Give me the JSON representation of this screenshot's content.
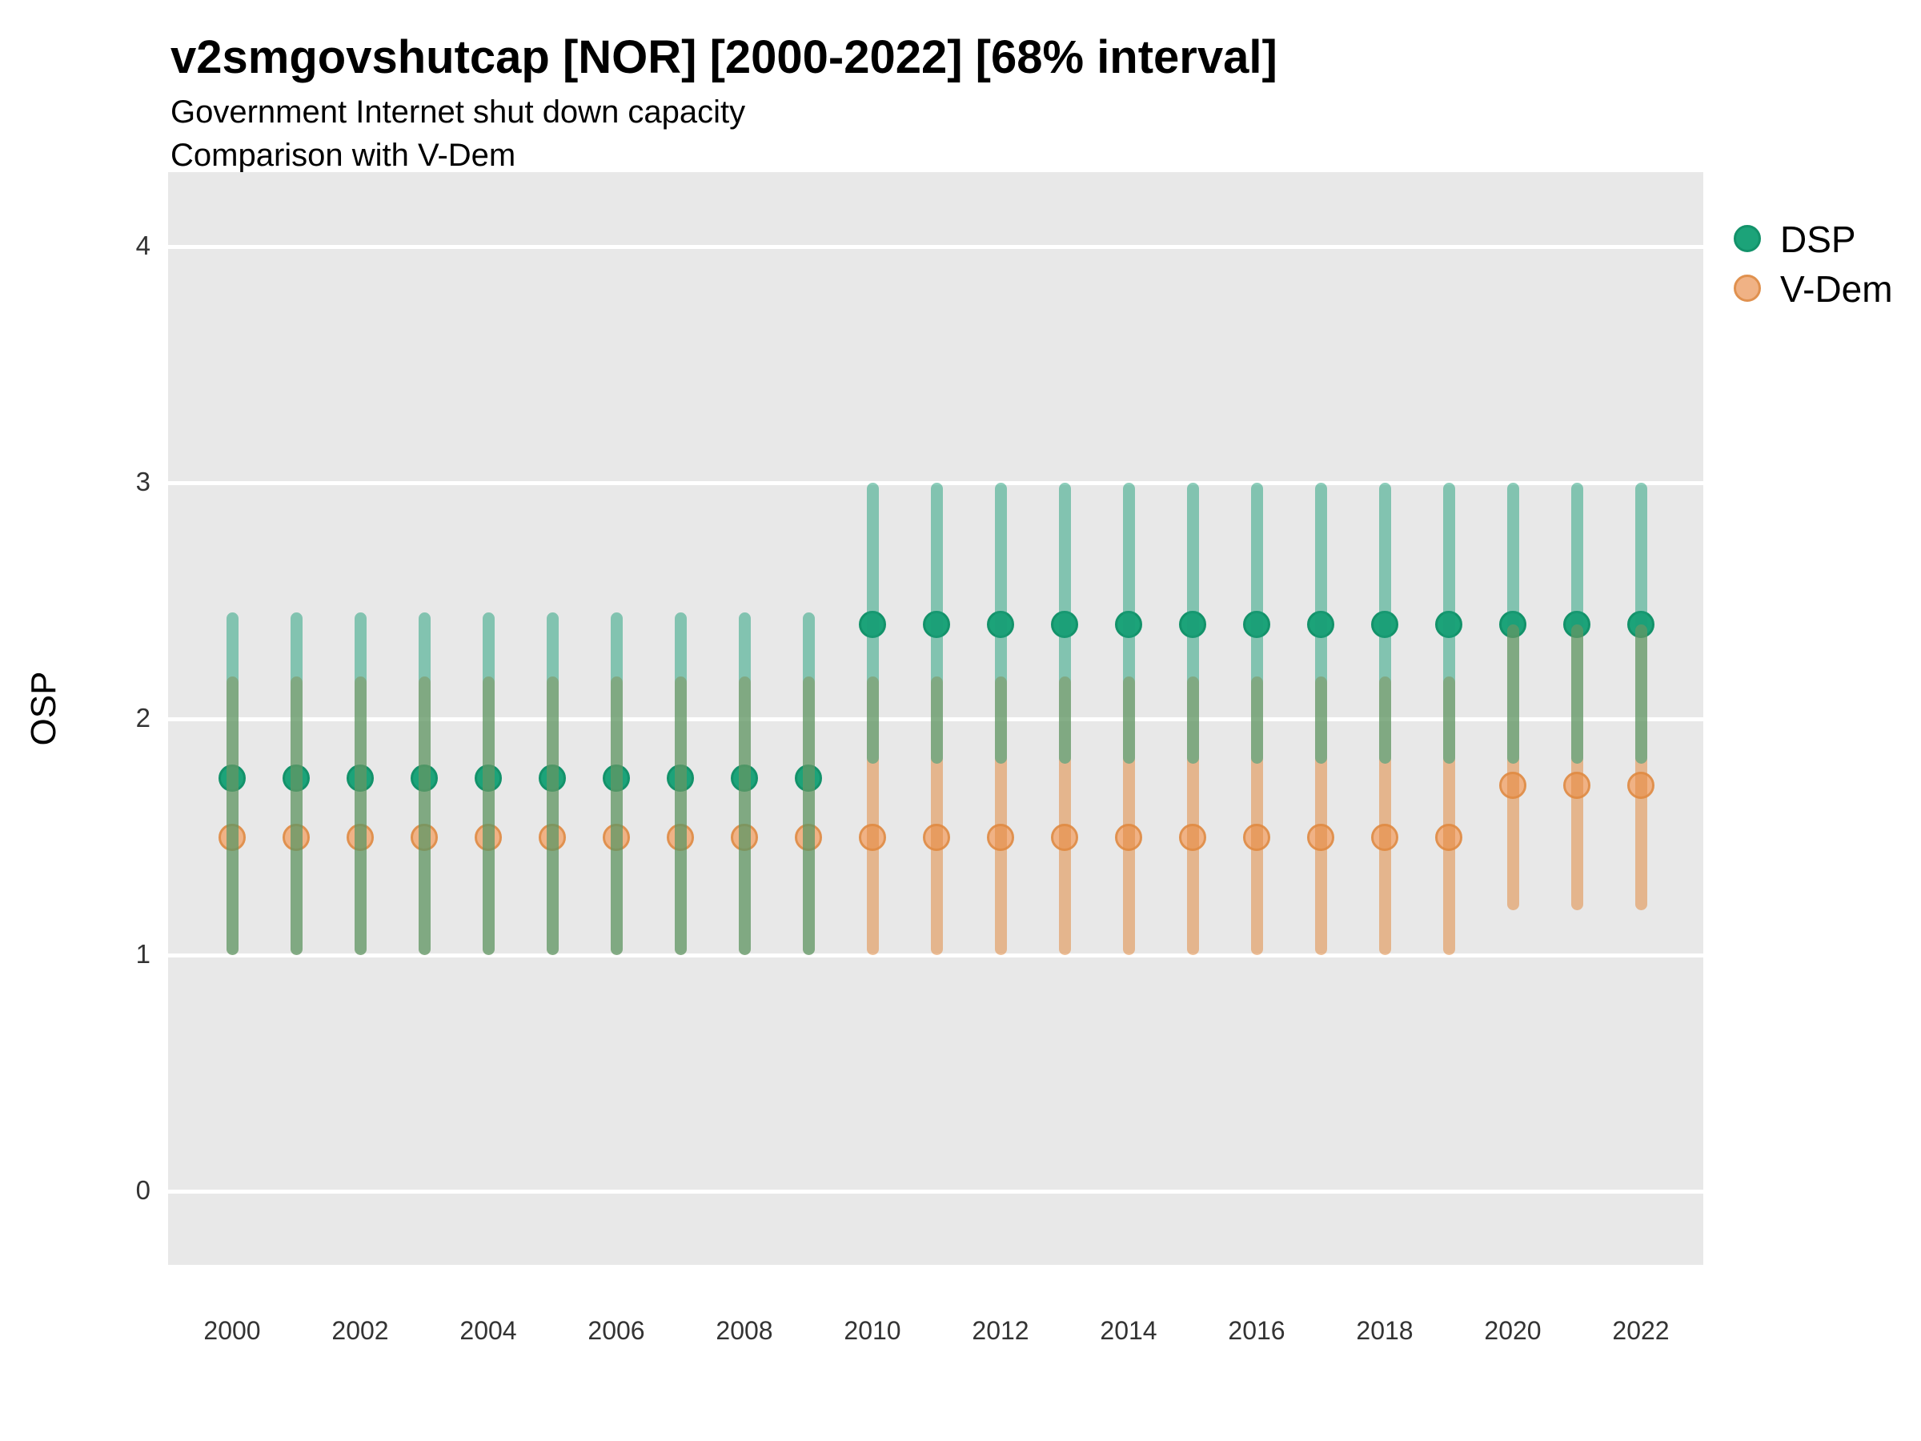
{
  "title": "v2smgovshutcap [NOR] [2000-2022] [68% interval]",
  "subtitle1": "Government Internet shut down capacity",
  "subtitle2": "Comparison with V-Dem",
  "y_axis": {
    "label": "OSP",
    "ticks": [
      0,
      1,
      2,
      3,
      4
    ]
  },
  "x_axis": {
    "tick_years": [
      2000,
      2002,
      2004,
      2006,
      2008,
      2010,
      2012,
      2014,
      2016,
      2018,
      2020,
      2022
    ]
  },
  "legend": {
    "position": "right",
    "entries": [
      {
        "label": "DSP",
        "color": "#1CA379"
      },
      {
        "label": "V-Dem",
        "color": "#F0B285"
      }
    ]
  },
  "colors": {
    "panel_bg": "#E8E8E8",
    "gridline": "#FFFFFF",
    "dsp_marker_fill": "#1CA379",
    "dsp_marker_stroke": "#13926A",
    "dsp_interval": "rgba(27,158,119,0.5)",
    "vdem_marker_fill": "#F0B285",
    "vdem_marker_stroke": "#E0914F",
    "vdem_interval": "rgba(224,138,65,0.55)",
    "tick_text": "#333333"
  },
  "chart_data": {
    "type": "pointrange",
    "title": "v2smgovshutcap [NOR] [2000-2022] [68% interval]",
    "xlabel": "",
    "ylabel": "OSP",
    "ylim": [
      0,
      4
    ],
    "grid": "major-y-only",
    "legend_position": "right-top",
    "x": [
      2000,
      2001,
      2002,
      2003,
      2004,
      2005,
      2006,
      2007,
      2008,
      2009,
      2010,
      2011,
      2012,
      2013,
      2014,
      2015,
      2016,
      2017,
      2018,
      2019,
      2020,
      2021,
      2022
    ],
    "series": [
      {
        "name": "DSP",
        "values": [
          1.75,
          1.75,
          1.75,
          1.75,
          1.75,
          1.75,
          1.75,
          1.75,
          1.75,
          1.75,
          2.4,
          2.4,
          2.4,
          2.4,
          2.4,
          2.4,
          2.4,
          2.4,
          2.4,
          2.4,
          2.4,
          2.4,
          2.4
        ],
        "lower": [
          1.0,
          1.0,
          1.0,
          1.0,
          1.0,
          1.0,
          1.0,
          1.0,
          1.0,
          1.0,
          1.81,
          1.81,
          1.81,
          1.81,
          1.81,
          1.81,
          1.81,
          1.81,
          1.81,
          1.81,
          1.81,
          1.81,
          1.81
        ],
        "upper": [
          2.45,
          2.45,
          2.45,
          2.45,
          2.45,
          2.45,
          2.45,
          2.45,
          2.45,
          2.45,
          3.0,
          3.0,
          3.0,
          3.0,
          3.0,
          3.0,
          3.0,
          3.0,
          3.0,
          3.0,
          3.0,
          3.0,
          3.0
        ]
      },
      {
        "name": "V-Dem",
        "values": [
          1.5,
          1.5,
          1.5,
          1.5,
          1.5,
          1.5,
          1.5,
          1.5,
          1.5,
          1.5,
          1.5,
          1.5,
          1.5,
          1.5,
          1.5,
          1.5,
          1.5,
          1.5,
          1.5,
          1.5,
          1.72,
          1.72,
          1.72
        ],
        "lower": [
          1.0,
          1.0,
          1.0,
          1.0,
          1.0,
          1.0,
          1.0,
          1.0,
          1.0,
          1.0,
          1.0,
          1.0,
          1.0,
          1.0,
          1.0,
          1.0,
          1.0,
          1.0,
          1.0,
          1.0,
          1.19,
          1.19,
          1.19
        ],
        "upper": [
          2.18,
          2.18,
          2.18,
          2.18,
          2.18,
          2.18,
          2.18,
          2.18,
          2.18,
          2.18,
          2.18,
          2.18,
          2.18,
          2.18,
          2.18,
          2.18,
          2.18,
          2.18,
          2.18,
          2.18,
          2.4,
          2.4,
          2.4
        ]
      }
    ]
  }
}
